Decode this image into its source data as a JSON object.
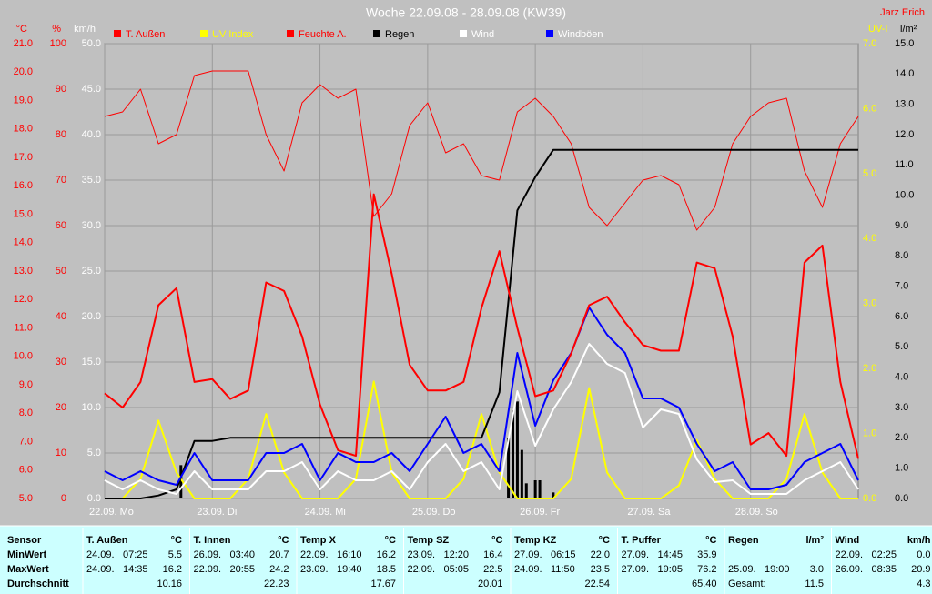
{
  "chart_data": {
    "type": "line",
    "title": "Woche 22.09.08 - 28.09.08 (KW39)",
    "author": "Jarz Erich",
    "xlim": [
      0,
      168
    ],
    "xticks": [
      {
        "value": 0,
        "label": "22.09. Mo"
      },
      {
        "value": 24,
        "label": "23.09. Di"
      },
      {
        "value": 48,
        "label": "24.09. Mi"
      },
      {
        "value": 72,
        "label": "25.09. Do"
      },
      {
        "value": 96,
        "label": "26.09. Fr"
      },
      {
        "value": 120,
        "label": "27.09. Sa"
      },
      {
        "value": 144,
        "label": "28.09. So"
      }
    ],
    "axes": [
      {
        "id": "temp",
        "label": "°C",
        "side": "left",
        "color": "#ff0000",
        "lim": [
          5,
          21
        ],
        "ticks": [
          {
            "value": 5,
            "label": "5.0"
          },
          {
            "value": 6,
            "label": "6.0"
          },
          {
            "value": 7,
            "label": "7.0"
          },
          {
            "value": 8,
            "label": "8.0"
          },
          {
            "value": 9,
            "label": "9.0"
          },
          {
            "value": 10,
            "label": "10.0"
          },
          {
            "value": 11,
            "label": "11.0"
          },
          {
            "value": 12,
            "label": "12.0"
          },
          {
            "value": 13,
            "label": "13.0"
          },
          {
            "value": 14,
            "label": "14.0"
          },
          {
            "value": 15,
            "label": "15.0"
          },
          {
            "value": 16,
            "label": "16.0"
          },
          {
            "value": 17,
            "label": "17.0"
          },
          {
            "value": 18,
            "label": "18.0"
          },
          {
            "value": 19,
            "label": "19.0"
          },
          {
            "value": 20,
            "label": "20.0"
          },
          {
            "value": 21,
            "label": "21.0"
          }
        ]
      },
      {
        "id": "hum",
        "label": "%",
        "side": "left",
        "color": "#ff0000",
        "lim": [
          0,
          100
        ],
        "ticks": [
          0,
          10,
          20,
          30,
          40,
          50,
          60,
          70,
          80,
          90,
          100
        ]
      },
      {
        "id": "wind",
        "label": "km/h",
        "side": "left",
        "color": "#ffffff",
        "lim": [
          0,
          50
        ],
        "grid": true,
        "ticks": [
          {
            "value": 0,
            "label": "0.0"
          },
          {
            "value": 5,
            "label": "5.0"
          },
          {
            "value": 10,
            "label": "10.0"
          },
          {
            "value": 15,
            "label": "15.0"
          },
          {
            "value": 20,
            "label": "20.0"
          },
          {
            "value": 25,
            "label": "25.0"
          },
          {
            "value": 30,
            "label": "30.0"
          },
          {
            "value": 35,
            "label": "35.0"
          },
          {
            "value": 40,
            "label": "40.0"
          },
          {
            "value": 45,
            "label": "45.0"
          },
          {
            "value": 50,
            "label": "50.0"
          }
        ]
      },
      {
        "id": "uv",
        "label": "UV-I",
        "side": "right",
        "color": "#ffff00",
        "lim": [
          0,
          7
        ],
        "ticks": [
          {
            "value": 0,
            "label": "0.0"
          },
          {
            "value": 1,
            "label": "1.0"
          },
          {
            "value": 2,
            "label": "2.0"
          },
          {
            "value": 3,
            "label": "3.0"
          },
          {
            "value": 4,
            "label": "4.0"
          },
          {
            "value": 5,
            "label": "5.0"
          },
          {
            "value": 6,
            "label": "6.0"
          },
          {
            "value": 7,
            "label": "7.0"
          }
        ]
      },
      {
        "id": "rain",
        "label": "l/m²",
        "side": "right",
        "color": "#000000",
        "lim": [
          0,
          15
        ],
        "ticks": [
          {
            "value": 0,
            "label": "0.0"
          },
          {
            "value": 1,
            "label": "1.0"
          },
          {
            "value": 2,
            "label": "2.0"
          },
          {
            "value": 3,
            "label": "3.0"
          },
          {
            "value": 4,
            "label": "4.0"
          },
          {
            "value": 5,
            "label": "5.0"
          },
          {
            "value": 6,
            "label": "6.0"
          },
          {
            "value": 7,
            "label": "7.0"
          },
          {
            "value": 8,
            "label": "8.0"
          },
          {
            "value": 9,
            "label": "9.0"
          },
          {
            "value": 10,
            "label": "10.0"
          },
          {
            "value": 11,
            "label": "11.0"
          },
          {
            "value": 12,
            "label": "12.0"
          },
          {
            "value": 13,
            "label": "13.0"
          },
          {
            "value": 14,
            "label": "14.0"
          },
          {
            "value": 15,
            "label": "15.0"
          }
        ]
      }
    ],
    "x": [
      0,
      4,
      8,
      12,
      16,
      20,
      24,
      28,
      32,
      36,
      40,
      44,
      48,
      52,
      56,
      60,
      64,
      68,
      72,
      76,
      80,
      84,
      88,
      92,
      96,
      100,
      104,
      108,
      112,
      116,
      120,
      124,
      128,
      132,
      136,
      140,
      144,
      148,
      152,
      156,
      160,
      164,
      168
    ],
    "series": [
      {
        "name": "T. Außen",
        "color": "#ff0000",
        "legend_text_color": "#ff0000",
        "axis": "temp",
        "line_width": 2,
        "values": [
          8.7,
          8.2,
          9.1,
          11.8,
          12.4,
          9.1,
          9.2,
          8.5,
          8.8,
          12.6,
          12.3,
          10.7,
          8.3,
          6.7,
          6.5,
          15.7,
          12.9,
          9.7,
          8.8,
          8.8,
          9.1,
          11.7,
          13.7,
          11.0,
          8.6,
          8.8,
          10.1,
          11.8,
          12.1,
          11.2,
          10.4,
          10.2,
          10.2,
          13.3,
          13.1,
          10.7,
          6.9,
          7.3,
          6.5,
          13.3,
          13.9,
          9.1,
          6.4
        ]
      },
      {
        "name": "UV Index",
        "color": "#ffff00",
        "legend_text_color": "#ffff00",
        "axis": "uv",
        "line_width": 2,
        "values": [
          0,
          0,
          0.3,
          1.2,
          0.4,
          0,
          0,
          0,
          0.3,
          1.3,
          0.4,
          0,
          0,
          0,
          0.3,
          1.8,
          0.4,
          0,
          0,
          0,
          0.3,
          1.3,
          0.4,
          0,
          0,
          0,
          0.3,
          1.7,
          0.4,
          0,
          0,
          0,
          0.2,
          0.9,
          0.3,
          0,
          0,
          0,
          0.3,
          1.3,
          0.4,
          0,
          0
        ]
      },
      {
        "name": "Feuchte A.",
        "color": "#ff0000",
        "legend_text_color": "#ff0000",
        "axis": "hum",
        "line_width": 1,
        "values": [
          84,
          85,
          90,
          78,
          80,
          93,
          94,
          94,
          94,
          80,
          72,
          87,
          91,
          88,
          90,
          62,
          67,
          82,
          87,
          76,
          78,
          71,
          70,
          85,
          88,
          84,
          78,
          64,
          60,
          65,
          70,
          71,
          69,
          59,
          64,
          78,
          84,
          87,
          88,
          72,
          64,
          78,
          84
        ]
      },
      {
        "name": "Regen",
        "color": "#000000",
        "legend_text_color": "#000000",
        "axis": "rain",
        "line_width": 2,
        "values": [
          0,
          0,
          0,
          0.1,
          0.3,
          1.9,
          1.9,
          2.0,
          2.0,
          2.0,
          2.0,
          2.0,
          2.0,
          2.0,
          2.0,
          2.0,
          2.0,
          2.0,
          2.0,
          2.0,
          2.0,
          2.0,
          3.5,
          9.5,
          10.6,
          11.5,
          11.5,
          11.5,
          11.5,
          11.5,
          11.5,
          11.5,
          11.5,
          11.5,
          11.5,
          11.5,
          11.5,
          11.5,
          11.5,
          11.5,
          11.5,
          11.5,
          11.5
        ]
      },
      {
        "name": "Wind",
        "color": "#ffffff",
        "legend_text_color": "#ffffff",
        "axis": "wind",
        "line_width": 2,
        "values": [
          2,
          1,
          2,
          1,
          0.5,
          3,
          1,
          1,
          1,
          3,
          3,
          4,
          1,
          3,
          2,
          2,
          3,
          1,
          4,
          6,
          3,
          4,
          1,
          11.8,
          5.8,
          9.8,
          12.8,
          17,
          14.8,
          13.8,
          7.8,
          9.8,
          9.3,
          4.3,
          1.8,
          2,
          0.5,
          0.5,
          0.5,
          2,
          3,
          4,
          1
        ]
      },
      {
        "name": "Windböen",
        "color": "#0000ff",
        "legend_text_color": "#ffffff",
        "axis": "wind",
        "line_width": 2,
        "values": [
          3,
          2,
          3,
          2,
          1.5,
          5,
          2,
          2,
          2,
          5,
          5,
          6,
          2,
          5,
          4,
          4,
          5,
          3,
          6,
          9,
          5,
          6,
          3,
          16,
          8,
          13,
          16,
          21,
          18,
          16,
          11,
          11,
          10,
          6,
          3,
          4,
          1,
          1,
          1.5,
          4,
          5,
          6,
          2
        ]
      }
    ],
    "draw_order": [
      2,
      1,
      3,
      5,
      4,
      0
    ],
    "rain_bars": {
      "axis": "rain",
      "color": "#000000",
      "x": [
        17,
        90,
        91,
        92,
        93,
        94,
        96,
        97,
        100
      ],
      "values": [
        1.1,
        2.0,
        2.9,
        3.2,
        1.6,
        0.5,
        0.6,
        0.6,
        0.2
      ]
    }
  },
  "table": {
    "row_labels": [
      "Sensor",
      "MinWert",
      "MaxWert",
      "Durchschnitt"
    ],
    "columns": [
      {
        "name": "T. Außen",
        "unit": "°C",
        "min": [
          "24.09.",
          "07:25",
          "5.5"
        ],
        "max": [
          "24.09.",
          "14:35",
          "16.2"
        ],
        "avg": "10.16"
      },
      {
        "name": "T. Innen",
        "unit": "°C",
        "min": [
          "26.09.",
          "03:40",
          "20.7"
        ],
        "max": [
          "22.09.",
          "20:55",
          "24.2"
        ],
        "avg": "22.23"
      },
      {
        "name": "Temp X",
        "unit": "°C",
        "min": [
          "22.09.",
          "16:10",
          "16.2"
        ],
        "max": [
          "23.09.",
          "19:40",
          "18.5"
        ],
        "avg": "17.67"
      },
      {
        "name": "Temp SZ",
        "unit": "°C",
        "min": [
          "23.09.",
          "12:20",
          "16.4"
        ],
        "max": [
          "22.09.",
          "05:05",
          "22.5"
        ],
        "avg": "20.01"
      },
      {
        "name": "Temp KZ",
        "unit": "°C",
        "min": [
          "27.09.",
          "06:15",
          "22.0"
        ],
        "max": [
          "24.09.",
          "11:50",
          "23.5"
        ],
        "avg": "22.54"
      },
      {
        "name": "T. Puffer",
        "unit": "°C",
        "min": [
          "27.09.",
          "14:45",
          "35.9"
        ],
        "max": [
          "27.09.",
          "19:05",
          "76.2"
        ],
        "avg": "65.40"
      },
      {
        "name": "Regen",
        "unit": "l/m²",
        "max": [
          "25.09.",
          "19:00",
          "3.0"
        ],
        "total": [
          "Gesamt:",
          "11.5"
        ]
      },
      {
        "name": "Wind",
        "unit": "km/h",
        "min": [
          "22.09.",
          "02:25",
          "0.0"
        ],
        "max": [
          "26.09.",
          "08:35",
          "20.9"
        ],
        "avg": "4.3"
      }
    ]
  }
}
